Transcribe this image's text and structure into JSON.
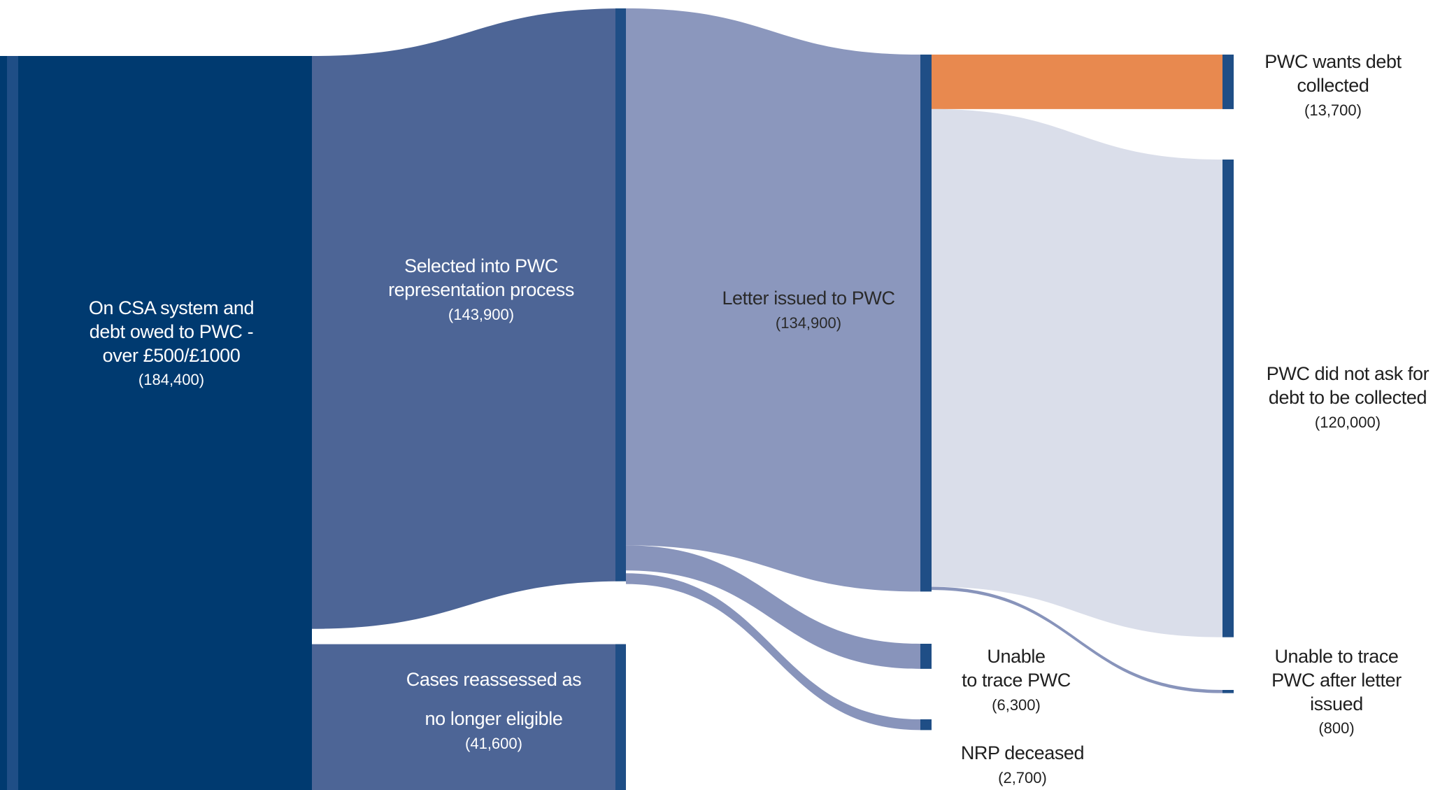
{
  "colors": {
    "node_bar": "#1f4e86",
    "col1_fill": "#003a70",
    "col2_fill": "#4d6596",
    "col3_fill": "#8b97bd",
    "link_wants_debt": "#e8894f",
    "link_did_not_ask": "#dadeea",
    "link_thin": "#8894bb"
  },
  "nodes": {
    "csa": {
      "lines": [
        "On CSA system and",
        "debt owed to PWC -",
        "over £500/£1000"
      ],
      "value": "(184,400)"
    },
    "selected": {
      "lines": [
        "Selected into PWC",
        "representation process"
      ],
      "value": "(143,900)"
    },
    "reassessed": {
      "lines": [
        "Cases reassessed as",
        "no longer eligible"
      ],
      "value": "(41,600)"
    },
    "letter": {
      "lines": [
        "Letter issued to PWC"
      ],
      "value": "(134,900)"
    },
    "unable_trace": {
      "lines": [
        "Unable",
        "to trace PWC"
      ],
      "value": "(6,300)"
    },
    "nrp_deceased": {
      "lines": [
        "NRP deceased"
      ],
      "value": "(2,700)"
    },
    "wants_debt": {
      "lines": [
        "PWC wants debt",
        "collected"
      ],
      "value": "(13,700)"
    },
    "did_not_ask": {
      "lines": [
        "PWC did not ask for",
        "debt to be collected"
      ],
      "value": "(120,000)"
    },
    "unable_after": {
      "lines": [
        "Unable to trace",
        "PWC after letter",
        "issued"
      ],
      "value": "(800)"
    }
  },
  "chart_data": {
    "type": "sankey",
    "nodes": [
      {
        "id": "csa",
        "label": "On CSA system and debt owed to PWC - over £500/£1000",
        "value": 184400
      },
      {
        "id": "selected",
        "label": "Selected into PWC representation process",
        "value": 143900
      },
      {
        "id": "reassessed",
        "label": "Cases reassessed as no longer eligible",
        "value": 41600
      },
      {
        "id": "letter",
        "label": "Letter issued to PWC",
        "value": 134900
      },
      {
        "id": "unable_trace",
        "label": "Unable to trace PWC",
        "value": 6300
      },
      {
        "id": "nrp_deceased",
        "label": "NRP deceased",
        "value": 2700
      },
      {
        "id": "wants_debt",
        "label": "PWC wants debt collected",
        "value": 13700
      },
      {
        "id": "did_not_ask",
        "label": "PWC did not ask for debt to be collected",
        "value": 120000
      },
      {
        "id": "unable_after",
        "label": "Unable to trace PWC after letter issued",
        "value": 800
      }
    ],
    "links": [
      {
        "source": "csa",
        "target": "selected",
        "value": 143900
      },
      {
        "source": "csa",
        "target": "reassessed",
        "value": 41600
      },
      {
        "source": "selected",
        "target": "letter",
        "value": 134900
      },
      {
        "source": "selected",
        "target": "unable_trace",
        "value": 6300
      },
      {
        "source": "selected",
        "target": "nrp_deceased",
        "value": 2700
      },
      {
        "source": "letter",
        "target": "wants_debt",
        "value": 13700
      },
      {
        "source": "letter",
        "target": "did_not_ask",
        "value": 120000
      },
      {
        "source": "letter",
        "target": "unable_after",
        "value": 800
      }
    ]
  }
}
